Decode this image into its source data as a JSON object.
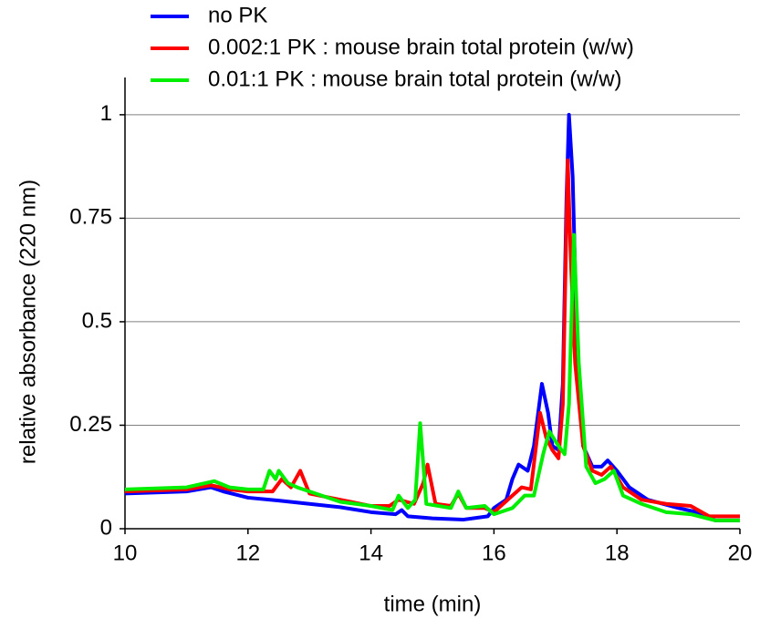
{
  "chart_data": {
    "type": "line",
    "xlabel": "time (min)",
    "ylabel": "relative absorbance (220 nm)",
    "xlim": [
      10,
      20
    ],
    "xticks": [
      10,
      12,
      14,
      16,
      18,
      20
    ],
    "ylim": [
      0,
      1.09
    ],
    "yticks": [
      0,
      0.25,
      0.5,
      0.75,
      1
    ],
    "grid": true,
    "legend": "top-left",
    "series": [
      {
        "name": "no PK",
        "color": "#0000ff",
        "x": [
          10,
          11,
          11.4,
          11.6,
          12,
          12.5,
          13,
          13.5,
          14,
          14.4,
          14.5,
          14.6,
          15,
          15.5,
          15.9,
          16,
          16.2,
          16.3,
          16.4,
          16.55,
          16.65,
          16.78,
          16.88,
          16.95,
          17.05,
          17.12,
          17.18,
          17.22,
          17.28,
          17.35,
          17.45,
          17.6,
          17.75,
          17.85,
          18,
          18.2,
          18.5,
          19,
          19.3,
          19.6,
          20
        ],
        "values": [
          0.085,
          0.09,
          0.1,
          0.09,
          0.075,
          0.068,
          0.06,
          0.052,
          0.04,
          0.035,
          0.045,
          0.03,
          0.025,
          0.022,
          0.03,
          0.05,
          0.07,
          0.12,
          0.155,
          0.14,
          0.2,
          0.35,
          0.28,
          0.2,
          0.19,
          0.35,
          0.8,
          1.0,
          0.85,
          0.45,
          0.2,
          0.15,
          0.15,
          0.165,
          0.14,
          0.1,
          0.07,
          0.05,
          0.04,
          0.02,
          0.02
        ]
      },
      {
        "name": "0.002:1 PK : mouse brain total protein (w/w)",
        "color": "#ff0000",
        "x": [
          10,
          11,
          11.4,
          11.7,
          12,
          12.4,
          12.55,
          12.7,
          12.85,
          13,
          13.5,
          14,
          14.3,
          14.45,
          14.7,
          14.85,
          14.92,
          15.05,
          15.3,
          15.42,
          15.55,
          15.85,
          16,
          16.3,
          16.45,
          16.6,
          16.75,
          16.85,
          16.95,
          17.05,
          17.12,
          17.2,
          17.25,
          17.32,
          17.45,
          17.6,
          17.75,
          17.9,
          18.1,
          18.4,
          18.8,
          19.2,
          19.5,
          20
        ],
        "values": [
          0.09,
          0.095,
          0.105,
          0.095,
          0.09,
          0.09,
          0.12,
          0.1,
          0.14,
          0.085,
          0.07,
          0.055,
          0.055,
          0.07,
          0.06,
          0.11,
          0.155,
          0.06,
          0.055,
          0.085,
          0.05,
          0.05,
          0.04,
          0.08,
          0.1,
          0.095,
          0.28,
          0.22,
          0.19,
          0.17,
          0.3,
          0.89,
          0.65,
          0.4,
          0.2,
          0.14,
          0.13,
          0.15,
          0.1,
          0.07,
          0.06,
          0.055,
          0.03,
          0.03
        ]
      },
      {
        "name": "0.01:1 PK : mouse brain total protein (w/w)",
        "color": "#00ee00",
        "x": [
          10,
          11,
          11.45,
          11.7,
          12,
          12.25,
          12.35,
          12.45,
          12.5,
          12.65,
          12.8,
          13,
          13.5,
          14,
          14.35,
          14.45,
          14.6,
          14.72,
          14.8,
          14.9,
          15.3,
          15.42,
          15.55,
          15.85,
          16,
          16.3,
          16.5,
          16.65,
          16.8,
          16.9,
          17.05,
          17.15,
          17.22,
          17.3,
          17.38,
          17.5,
          17.65,
          17.8,
          17.95,
          18.1,
          18.4,
          18.8,
          19.2,
          19.6,
          20
        ],
        "values": [
          0.095,
          0.1,
          0.115,
          0.1,
          0.095,
          0.095,
          0.14,
          0.12,
          0.14,
          0.11,
          0.1,
          0.09,
          0.065,
          0.055,
          0.045,
          0.08,
          0.05,
          0.07,
          0.255,
          0.06,
          0.05,
          0.09,
          0.05,
          0.055,
          0.035,
          0.05,
          0.08,
          0.08,
          0.18,
          0.235,
          0.2,
          0.18,
          0.3,
          0.71,
          0.4,
          0.15,
          0.11,
          0.12,
          0.14,
          0.08,
          0.06,
          0.04,
          0.035,
          0.02,
          0.02
        ]
      }
    ]
  }
}
